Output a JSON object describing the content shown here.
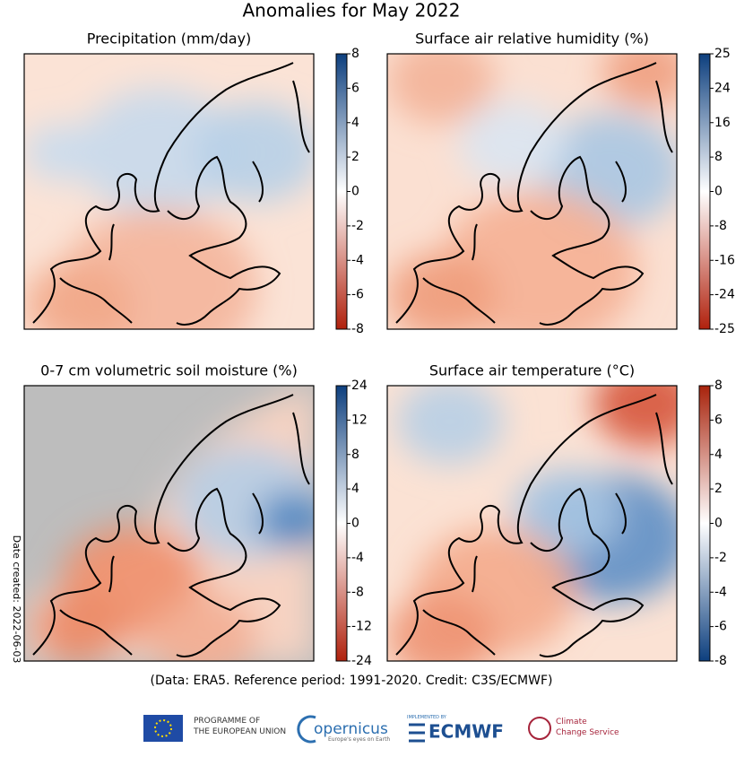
{
  "title": "Anomalies for May 2022",
  "panels": [
    {
      "title": "Precipitation (mm/day)",
      "colorbar_ticks": [
        8,
        6,
        4,
        2,
        0,
        -2,
        -4,
        -6,
        -8
      ],
      "colorbar_colors": [
        "#0d3f7e",
        "#ffffff",
        "#b0210d"
      ]
    },
    {
      "title": "Surface air relative humidity (%)",
      "colorbar_ticks": [
        25,
        24,
        16,
        8,
        0,
        -8,
        -16,
        -24,
        -25
      ],
      "colorbar_colors": [
        "#0d3f7e",
        "#ffffff",
        "#b0210d"
      ]
    },
    {
      "title": "0-7 cm volumetric soil moisture (%)",
      "colorbar_ticks": [
        24,
        12,
        8,
        4,
        0,
        -4,
        -8,
        -12,
        -24
      ],
      "colorbar_colors": [
        "#0d3f7e",
        "#ffffff",
        "#b0210d"
      ]
    },
    {
      "title": "Surface air temperature (°C)",
      "colorbar_ticks": [
        8,
        6,
        4,
        2,
        0,
        -2,
        -4,
        -6,
        -8
      ],
      "colorbar_colors": [
        "#a8230c",
        "#ffffff",
        "#0d3f7e"
      ]
    }
  ],
  "footer": "(Data: ERA5.  Reference period: 1991-2020.  Credit: C3S/ECMWF)",
  "date_created": "Date created: 2022-06-03",
  "logos": {
    "eu": [
      "PROGRAMME OF",
      "THE EUROPEAN UNION"
    ],
    "copernicus": [
      "opernicus",
      "Europe's eyes on Earth"
    ],
    "ecmwf": [
      "IMPLEMENTED BY",
      "ECMWF"
    ],
    "c3s": [
      "Climate",
      "Change Service"
    ]
  }
}
